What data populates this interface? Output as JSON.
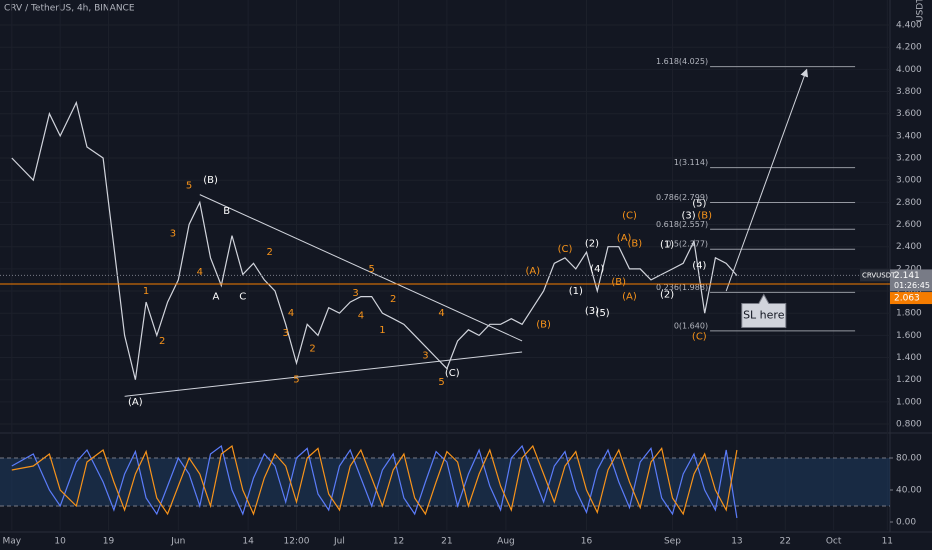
{
  "chart_data": [
    {
      "type": "line",
      "title": "CRV / TetherUS, 4h, BINANCE",
      "y_unit": "USDT",
      "xlim": [
        -2.2,
        163.5
      ],
      "ylim": [
        0.728,
        4.626
      ],
      "grid": true,
      "x": [
        0,
        4,
        7,
        9,
        12,
        14,
        17,
        19,
        21,
        23,
        25,
        27,
        29,
        31,
        33,
        35,
        37,
        39,
        41,
        43,
        45,
        47,
        49,
        51,
        53,
        55,
        57,
        59,
        61,
        63,
        65,
        67,
        69,
        71,
        73,
        75,
        77,
        79,
        81,
        83,
        85,
        87,
        89,
        91,
        93,
        95,
        97,
        99,
        101,
        103,
        105,
        107,
        109,
        111,
        113,
        115,
        117,
        119,
        121,
        123,
        125,
        127,
        129,
        131,
        133,
        135
      ],
      "series": [
        {
          "name": "CRVUSDT",
          "color": "#d1d4dc",
          "values": [
            3.2,
            3.0,
            3.6,
            3.4,
            3.7,
            3.3,
            3.2,
            2.4,
            1.6,
            1.2,
            1.9,
            1.6,
            1.9,
            2.1,
            2.6,
            2.8,
            2.3,
            2.05,
            2.5,
            2.15,
            2.25,
            2.1,
            2.0,
            1.7,
            1.35,
            1.7,
            1.6,
            1.85,
            1.8,
            1.9,
            1.95,
            1.95,
            1.8,
            1.75,
            1.7,
            1.6,
            1.5,
            1.4,
            1.3,
            1.55,
            1.65,
            1.6,
            1.7,
            1.7,
            1.75,
            1.7,
            1.85,
            2.0,
            2.25,
            2.3,
            2.2,
            2.35,
            2.0,
            2.4,
            2.4,
            2.2,
            2.2,
            2.1,
            2.15,
            2.2,
            2.25,
            2.45,
            1.8,
            2.3,
            2.25,
            2.14
          ]
        }
      ],
      "xticks": [
        {
          "value": 0,
          "label": "May"
        },
        {
          "value": 9,
          "label": "10"
        },
        {
          "value": 18,
          "label": "19"
        },
        {
          "value": 31,
          "label": "Jun"
        },
        {
          "value": 44,
          "label": "14"
        },
        {
          "value": 53,
          "label": "12:00"
        },
        {
          "value": 61,
          "label": "Jul"
        },
        {
          "value": 72,
          "label": "12"
        },
        {
          "value": 81,
          "label": "21"
        },
        {
          "value": 92,
          "label": "Aug"
        },
        {
          "value": 107,
          "label": "16"
        },
        {
          "value": 123,
          "label": "Sep"
        },
        {
          "value": 135,
          "label": "13"
        },
        {
          "value": 144,
          "label": "22"
        },
        {
          "value": 153,
          "label": "Oct"
        },
        {
          "value": 163,
          "label": "11"
        }
      ],
      "yticks": [
        {
          "value": 0.8,
          "label": "0.800"
        },
        {
          "value": 1.0,
          "label": "1.000"
        },
        {
          "value": 1.2,
          "label": "1.200"
        },
        {
          "value": 1.4,
          "label": "1.400"
        },
        {
          "value": 1.6,
          "label": "1.600"
        },
        {
          "value": 1.8,
          "label": "1.800"
        },
        {
          "value": 2.0,
          "label": "2.000"
        },
        {
          "value": 2.2,
          "label": "2.200"
        },
        {
          "value": 2.4,
          "label": "2.400"
        },
        {
          "value": 2.6,
          "label": "2.600"
        },
        {
          "value": 2.8,
          "label": "2.800"
        },
        {
          "value": 3.0,
          "label": "3.000"
        },
        {
          "value": 3.2,
          "label": "3.200"
        },
        {
          "value": 3.4,
          "label": "3.400"
        },
        {
          "value": 3.6,
          "label": "3.600"
        },
        {
          "value": 3.8,
          "label": "3.800"
        },
        {
          "value": 4.0,
          "label": "4.000"
        },
        {
          "value": 4.2,
          "label": "4.200"
        },
        {
          "value": 4.4,
          "label": "4.400"
        }
      ],
      "trendlines": [
        {
          "points": [
            [
              35,
              2.87
            ],
            [
              95,
              1.55
            ]
          ],
          "color": "#d1d4dc"
        },
        {
          "points": [
            [
              21,
              1.05
            ],
            [
              95,
              1.45
            ]
          ],
          "color": "#d1d4dc"
        },
        {
          "points": [
            [
              133,
              2.0
            ],
            [
              148,
              4.0
            ]
          ],
          "color": "#d1d4dc",
          "arrow": true
        }
      ],
      "fib_x": [
        130,
        157
      ],
      "fib_color": "#9598a1",
      "fib_levels": [
        {
          "value": 4.025,
          "label": "1.618(4.025)"
        },
        {
          "value": 3.114,
          "label": "1(3.114)"
        },
        {
          "value": 2.799,
          "label": "0.786(2.799)"
        },
        {
          "value": 2.557,
          "label": "0.618(2.557)"
        },
        {
          "value": 2.377,
          "label": "0.5(2.377)"
        },
        {
          "value": 1.988,
          "label": "0.236(1.988)"
        },
        {
          "value": 1.64,
          "label": "0(1.640)"
        }
      ],
      "price_tags": [
        {
          "value": 2.141,
          "label": "2.141",
          "symbol": "CRVUSDT",
          "countdown": "01:26:45",
          "color": "#787b86"
        },
        {
          "value": 2.063,
          "label": "2.063",
          "color": "#f57c00"
        }
      ],
      "callout": {
        "text": "SL here",
        "x": 140,
        "y": 1.86
      },
      "annotations": [
        {
          "text": "(A)",
          "x": 23,
          "y": 1.0,
          "color": "#ffffff"
        },
        {
          "text": "(B)",
          "x": 37,
          "y": 3.0,
          "color": "#ffffff"
        },
        {
          "text": "5",
          "x": 33,
          "y": 2.95,
          "color": "#f7931a"
        },
        {
          "text": "B",
          "x": 40,
          "y": 2.72,
          "color": "#ffffff"
        },
        {
          "text": "3",
          "x": 30,
          "y": 2.52,
          "color": "#f7931a"
        },
        {
          "text": "A",
          "x": 38,
          "y": 1.95,
          "color": "#ffffff"
        },
        {
          "text": "C",
          "x": 43,
          "y": 1.95,
          "color": "#ffffff"
        },
        {
          "text": "4",
          "x": 35,
          "y": 2.17,
          "color": "#f7931a"
        },
        {
          "text": "1",
          "x": 25,
          "y": 2.0,
          "color": "#f7931a"
        },
        {
          "text": "2",
          "x": 28,
          "y": 1.55,
          "color": "#f7931a"
        },
        {
          "text": "2",
          "x": 48,
          "y": 2.35,
          "color": "#f7931a"
        },
        {
          "text": "4",
          "x": 52,
          "y": 1.8,
          "color": "#f7931a"
        },
        {
          "text": "3",
          "x": 51,
          "y": 1.62,
          "color": "#f7931a"
        },
        {
          "text": "5",
          "x": 53,
          "y": 1.2,
          "color": "#f7931a"
        },
        {
          "text": "2",
          "x": 56,
          "y": 1.48,
          "color": "#f7931a"
        },
        {
          "text": "5",
          "x": 67,
          "y": 2.2,
          "color": "#f7931a"
        },
        {
          "text": "3",
          "x": 64,
          "y": 1.98,
          "color": "#f7931a"
        },
        {
          "text": "2",
          "x": 71,
          "y": 1.93,
          "color": "#f7931a"
        },
        {
          "text": "4",
          "x": 65,
          "y": 1.78,
          "color": "#f7931a"
        },
        {
          "text": "1",
          "x": 69,
          "y": 1.65,
          "color": "#f7931a"
        },
        {
          "text": "4",
          "x": 80,
          "y": 1.8,
          "color": "#f7931a"
        },
        {
          "text": "3",
          "x": 77,
          "y": 1.42,
          "color": "#f7931a"
        },
        {
          "text": "5",
          "x": 80,
          "y": 1.18,
          "color": "#f7931a"
        },
        {
          "text": "(C)",
          "x": 82,
          "y": 1.26,
          "color": "#ffffff"
        },
        {
          "text": "(A)",
          "x": 97,
          "y": 2.18,
          "color": "#f7931a"
        },
        {
          "text": "(B)",
          "x": 99,
          "y": 1.7,
          "color": "#f7931a"
        },
        {
          "text": "(C)",
          "x": 103,
          "y": 2.38,
          "color": "#f7931a"
        },
        {
          "text": "(2)",
          "x": 108,
          "y": 2.43,
          "color": "#ffffff"
        },
        {
          "text": "(1)",
          "x": 105,
          "y": 2.0,
          "color": "#ffffff"
        },
        {
          "text": "(4)",
          "x": 109,
          "y": 2.2,
          "color": "#ffffff"
        },
        {
          "text": "(3)",
          "x": 108,
          "y": 1.82,
          "color": "#ffffff"
        },
        {
          "text": "(5)",
          "x": 110,
          "y": 1.8,
          "color": "#ffffff"
        },
        {
          "text": "(A)",
          "x": 114,
          "y": 2.48,
          "color": "#f7931a"
        },
        {
          "text": "(B)",
          "x": 116,
          "y": 2.43,
          "color": "#f7931a"
        },
        {
          "text": "(C)",
          "x": 115,
          "y": 2.68,
          "color": "#f7931a"
        },
        {
          "text": "(B)",
          "x": 113,
          "y": 2.08,
          "color": "#f7931a"
        },
        {
          "text": "(A)",
          "x": 115,
          "y": 1.95,
          "color": "#f7931a"
        },
        {
          "text": "(2)",
          "x": 122,
          "y": 1.97,
          "color": "#ffffff"
        },
        {
          "text": "(1)",
          "x": 122,
          "y": 2.42,
          "color": "#ffffff"
        },
        {
          "text": "(3)",
          "x": 126,
          "y": 2.68,
          "color": "#ffffff"
        },
        {
          "text": "(5)",
          "x": 128,
          "y": 2.79,
          "color": "#ffffff"
        },
        {
          "text": "(B)",
          "x": 129,
          "y": 2.68,
          "color": "#f7931a"
        },
        {
          "text": "(4)",
          "x": 128,
          "y": 2.23,
          "color": "#ffffff"
        },
        {
          "text": "(C)",
          "x": 128,
          "y": 1.59,
          "color": "#f7931a"
        }
      ]
    },
    {
      "type": "line",
      "xlim": [
        -2.2,
        163.5
      ],
      "ylim": [
        -10,
        108.75
      ],
      "yticks": [
        {
          "value": 0,
          "label": "0.00"
        },
        {
          "value": 40,
          "label": "40.00"
        },
        {
          "value": 80,
          "label": "80.00"
        }
      ],
      "band": [
        20,
        80
      ],
      "band_color": "#1e3a5f",
      "x": [
        0,
        4,
        7,
        9,
        12,
        14,
        17,
        19,
        21,
        23,
        25,
        27,
        29,
        31,
        33,
        35,
        37,
        39,
        41,
        43,
        45,
        47,
        49,
        51,
        53,
        55,
        57,
        59,
        61,
        63,
        65,
        67,
        69,
        71,
        73,
        75,
        77,
        79,
        81,
        83,
        85,
        87,
        89,
        91,
        93,
        95,
        97,
        99,
        101,
        103,
        105,
        107,
        109,
        111,
        113,
        115,
        117,
        119,
        121,
        123,
        125,
        127,
        129,
        131,
        133,
        135
      ],
      "series": [
        {
          "name": "%K",
          "color": "#5b7cfa",
          "values": [
            70,
            85,
            40,
            20,
            75,
            90,
            50,
            15,
            60,
            88,
            30,
            10,
            45,
            80,
            60,
            20,
            85,
            95,
            40,
            10,
            55,
            85,
            70,
            25,
            80,
            92,
            35,
            15,
            70,
            90,
            55,
            20,
            65,
            85,
            30,
            10,
            50,
            88,
            75,
            20,
            60,
            90,
            45,
            15,
            80,
            95,
            60,
            25,
            70,
            88,
            40,
            12,
            65,
            90,
            50,
            18,
            75,
            92,
            30,
            10,
            60,
            85,
            40,
            15,
            90,
            5
          ]
        },
        {
          "name": "%D",
          "color": "#f7931a",
          "values": [
            65,
            70,
            85,
            40,
            20,
            75,
            90,
            50,
            15,
            60,
            88,
            30,
            10,
            45,
            80,
            60,
            20,
            85,
            95,
            40,
            10,
            55,
            85,
            70,
            25,
            80,
            92,
            35,
            15,
            70,
            90,
            55,
            20,
            65,
            85,
            30,
            10,
            50,
            88,
            75,
            20,
            60,
            90,
            45,
            15,
            80,
            95,
            60,
            25,
            70,
            88,
            40,
            12,
            65,
            90,
            50,
            18,
            75,
            92,
            30,
            10,
            60,
            85,
            40,
            15,
            90
          ]
        }
      ]
    }
  ]
}
